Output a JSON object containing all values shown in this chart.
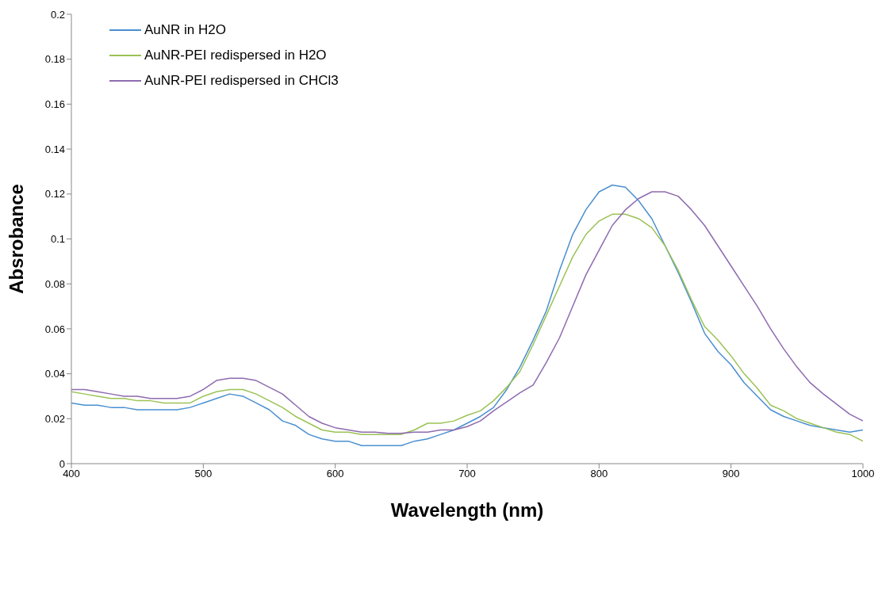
{
  "chart_data": {
    "type": "line",
    "xlabel": "Wavelength (nm)",
    "ylabel": "Absrobance",
    "x": [
      400,
      410,
      420,
      430,
      440,
      450,
      460,
      470,
      480,
      490,
      500,
      510,
      520,
      530,
      540,
      550,
      560,
      570,
      580,
      590,
      600,
      610,
      620,
      630,
      640,
      650,
      660,
      670,
      680,
      690,
      700,
      710,
      720,
      730,
      740,
      750,
      760,
      770,
      780,
      790,
      800,
      810,
      820,
      830,
      840,
      850,
      860,
      870,
      880,
      890,
      900,
      910,
      920,
      930,
      940,
      950,
      960,
      970,
      980,
      990,
      1000
    ],
    "series": [
      {
        "name": "AuNR in H2O",
        "color": "#4a8fd0",
        "values": [
          0.027,
          0.026,
          0.026,
          0.025,
          0.025,
          0.024,
          0.024,
          0.024,
          0.024,
          0.025,
          0.027,
          0.029,
          0.031,
          0.03,
          0.027,
          0.024,
          0.019,
          0.017,
          0.013,
          0.011,
          0.01,
          0.01,
          0.008,
          0.008,
          0.008,
          0.008,
          0.01,
          0.011,
          0.013,
          0.015,
          0.018,
          0.021,
          0.025,
          0.033,
          0.043,
          0.055,
          0.068,
          0.086,
          0.102,
          0.113,
          0.121,
          0.124,
          0.123,
          0.117,
          0.109,
          0.097,
          0.085,
          0.072,
          0.058,
          0.05,
          0.044,
          0.036,
          0.03,
          0.024,
          0.021,
          0.019,
          0.017,
          0.016,
          0.015,
          0.014,
          0.015
        ]
      },
      {
        "name": "AuNR-PEI redispersed in H2O",
        "color": "#9bc255",
        "values": [
          0.032,
          0.031,
          0.03,
          0.029,
          0.029,
          0.028,
          0.028,
          0.027,
          0.027,
          0.027,
          0.03,
          0.032,
          0.033,
          0.033,
          0.031,
          0.028,
          0.025,
          0.021,
          0.018,
          0.015,
          0.014,
          0.014,
          0.013,
          0.013,
          0.013,
          0.013,
          0.015,
          0.018,
          0.018,
          0.019,
          0.0215,
          0.0235,
          0.028,
          0.034,
          0.041,
          0.053,
          0.066,
          0.079,
          0.092,
          0.102,
          0.108,
          0.111,
          0.111,
          0.109,
          0.105,
          0.097,
          0.086,
          0.073,
          0.061,
          0.055,
          0.048,
          0.04,
          0.0335,
          0.026,
          0.0235,
          0.02,
          0.018,
          0.016,
          0.014,
          0.013,
          0.01
        ]
      },
      {
        "name": "AuNR-PEI redispersed in CHCl3",
        "color": "#8e6bb0",
        "values": [
          0.033,
          0.033,
          0.032,
          0.031,
          0.03,
          0.03,
          0.029,
          0.029,
          0.029,
          0.03,
          0.033,
          0.037,
          0.038,
          0.038,
          0.037,
          0.034,
          0.031,
          0.026,
          0.021,
          0.018,
          0.016,
          0.015,
          0.014,
          0.014,
          0.0135,
          0.0135,
          0.014,
          0.014,
          0.015,
          0.015,
          0.0165,
          0.019,
          0.0235,
          0.0275,
          0.0315,
          0.035,
          0.045,
          0.056,
          0.07,
          0.084,
          0.095,
          0.106,
          0.113,
          0.118,
          0.121,
          0.121,
          0.119,
          0.113,
          0.106,
          0.097,
          0.088,
          0.079,
          0.07,
          0.06,
          0.051,
          0.043,
          0.036,
          0.031,
          0.0265,
          0.022,
          0.019
        ]
      }
    ],
    "xlim": [
      400,
      1000
    ],
    "xticks": [
      400,
      500,
      600,
      700,
      800,
      900,
      1000
    ],
    "ylim": [
      0,
      0.2
    ],
    "yticks": [
      0,
      0.02,
      0.04,
      0.06,
      0.08,
      0.1,
      0.12,
      0.14,
      0.16,
      0.18,
      0.2
    ],
    "grid": false,
    "legend": "top left",
    "marker": "none",
    "line_style": "solid"
  }
}
